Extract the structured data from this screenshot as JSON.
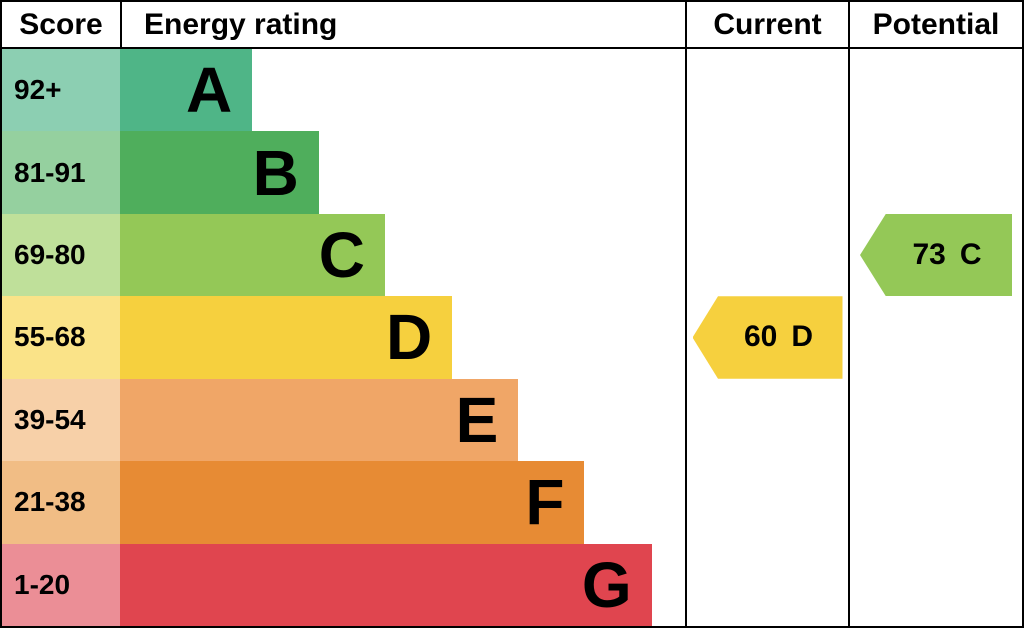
{
  "header": {
    "score": "Score",
    "energy_rating": "Energy rating",
    "current": "Current",
    "potential": "Potential"
  },
  "chart_data": {
    "type": "bar",
    "title": "Energy rating (EPC)",
    "legend_position": "none",
    "grid": false,
    "bands": [
      {
        "score": "92+",
        "letter": "A",
        "color": "#4fb587",
        "tint": "#8ccfb2",
        "width_pct": 23.4
      },
      {
        "score": "81-91",
        "letter": "B",
        "color": "#4fae5c",
        "tint": "#95d09f",
        "width_pct": 35.2
      },
      {
        "score": "69-80",
        "letter": "C",
        "color": "#94c857",
        "tint": "#bfe09a",
        "width_pct": 46.9
      },
      {
        "score": "55-68",
        "letter": "D",
        "color": "#f6d03e",
        "tint": "#fae388",
        "width_pct": 58.8
      },
      {
        "score": "39-54",
        "letter": "E",
        "color": "#f0a667",
        "tint": "#f7d0a8",
        "width_pct": 70.5
      },
      {
        "score": "21-38",
        "letter": "F",
        "color": "#e78b34",
        "tint": "#f1bd85",
        "width_pct": 82.2
      },
      {
        "score": "1-20",
        "letter": "G",
        "color": "#e0454f",
        "tint": "#eb8e96",
        "width_pct": 94.1
      }
    ],
    "current": {
      "value": "60",
      "letter": "D",
      "color": "#f6d03e"
    },
    "potential": {
      "value": "73",
      "letter": "C",
      "color": "#94c857"
    }
  }
}
